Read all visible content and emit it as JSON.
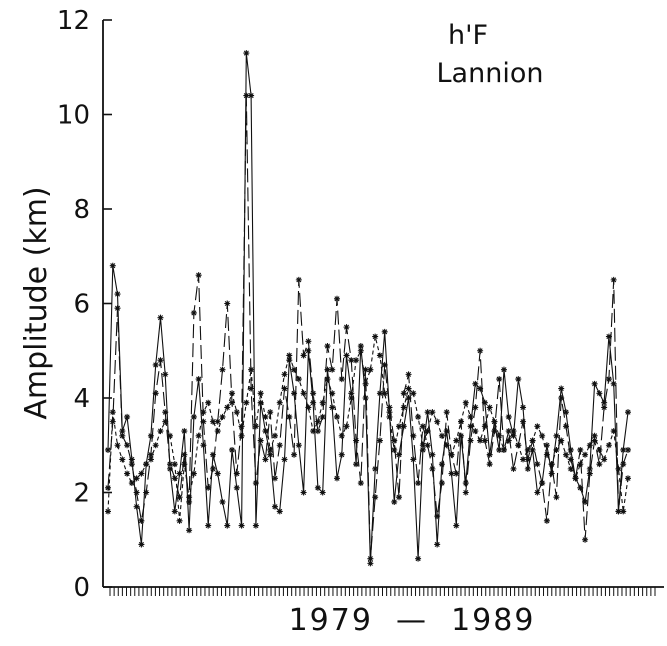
{
  "chart_data": {
    "type": "line",
    "title": "",
    "annotation": [
      "h'F",
      "Lannion"
    ],
    "xlabel": "1979  —  1989",
    "ylabel": "Amplitude  (km)",
    "ylim": [
      0,
      12
    ],
    "yticks": [
      0,
      2,
      4,
      6,
      8,
      10,
      12
    ],
    "ytick_labels": [
      "0",
      "2",
      "4",
      "6",
      "8",
      "10",
      "12"
    ],
    "xlim": [
      0,
      132
    ],
    "x_minor_ticks": 132,
    "grid": false,
    "marker": "asterisk",
    "color": "#111111",
    "series": [
      {
        "line_style": "solid",
        "values": [
          2.9,
          6.8,
          6.2,
          3.3,
          3.6,
          2.7,
          1.7,
          0.9,
          2.6,
          3.2,
          4.7,
          5.7,
          4.5,
          2.5,
          1.6,
          2.4,
          3.3,
          1.2,
          3.6,
          4.4,
          3.0,
          1.3,
          2.8,
          2.4,
          1.8,
          1.3,
          2.9,
          2.1,
          1.3,
          11.3,
          10.4,
          1.3,
          3.9,
          3.3,
          2.8,
          1.7,
          1.6,
          2.7,
          4.8,
          4.1,
          3.0,
          2.0,
          5.0,
          3.9,
          2.1,
          2.0,
          4.6,
          3.8,
          2.3,
          2.8,
          4.9,
          4.1,
          2.6,
          5.1,
          4.0,
          0.5,
          2.5,
          4.1,
          5.4,
          3.7,
          1.8,
          2.8,
          3.4,
          4.0,
          2.7,
          0.6,
          2.9,
          3.7,
          2.8,
          0.9,
          2.6,
          3.3,
          2.4,
          1.3,
          3.2,
          2.2,
          3.4,
          4.3,
          4.2,
          3.9,
          2.8,
          3.5,
          2.9,
          4.6,
          3.6,
          3.2,
          4.4,
          3.8,
          2.5,
          2.9,
          2.0,
          2.2,
          3.0,
          2.4,
          3.2,
          4.2,
          3.7,
          2.9,
          2.3,
          2.1,
          1.8,
          2.5,
          4.3,
          4.1,
          3.9,
          5.3,
          4.3,
          1.6,
          2.9,
          3.7
        ]
      },
      {
        "line_style": "long-dash",
        "values": [
          2.1,
          3.5,
          5.9,
          3.2,
          3.0,
          2.6,
          2.0,
          1.4,
          2.0,
          2.8,
          4.1,
          4.8,
          3.7,
          2.6,
          2.3,
          1.9,
          2.8,
          1.8,
          5.8,
          6.6,
          3.5,
          2.1,
          2.5,
          3.5,
          4.6,
          6.0,
          3.9,
          2.4,
          3.4,
          10.4,
          4.2,
          2.2,
          3.1,
          2.7,
          3.7,
          2.3,
          3.0,
          4.2,
          3.6,
          2.8,
          6.5,
          4.9,
          5.2,
          4.1,
          3.3,
          3.6,
          5.1,
          4.6,
          6.1,
          4.4,
          5.5,
          4.8,
          3.1,
          2.2,
          4.6,
          0.6,
          1.9,
          3.1,
          4.7,
          3.8,
          3.1,
          1.9,
          4.1,
          4.5,
          3.2,
          2.2,
          3.4,
          3.0,
          2.5,
          1.5,
          2.2,
          3.7,
          2.8,
          2.4,
          3.5,
          2.0,
          3.1,
          3.8,
          5.0,
          3.1,
          2.6,
          3.3,
          4.4,
          2.9,
          3.3,
          2.5,
          3.0,
          3.5,
          2.7,
          3.1,
          2.6,
          2.2,
          1.4,
          2.6,
          1.9,
          4.0,
          3.4,
          2.7,
          2.3,
          2.9,
          1.0,
          2.4,
          3.1,
          2.6,
          3.8,
          4.4,
          6.5,
          1.6,
          2.6,
          2.9
        ]
      },
      {
        "line_style": "short-dash",
        "values": [
          1.6,
          3.7,
          3.0,
          2.7,
          2.4,
          2.2,
          2.3,
          2.4,
          2.6,
          2.7,
          3.0,
          3.3,
          3.5,
          3.2,
          2.6,
          1.4,
          2.6,
          1.9,
          2.4,
          3.2,
          3.7,
          3.9,
          3.5,
          3.3,
          3.6,
          3.8,
          4.1,
          3.7,
          3.2,
          3.9,
          4.6,
          3.4,
          4.1,
          3.6,
          2.9,
          3.2,
          3.9,
          4.5,
          4.9,
          4.6,
          4.4,
          4.1,
          3.8,
          3.3,
          3.5,
          3.9,
          4.4,
          4.1,
          3.6,
          3.2,
          3.4,
          4.0,
          4.8,
          5.0,
          4.3,
          4.6,
          5.3,
          4.9,
          4.1,
          3.6,
          2.9,
          3.4,
          3.8,
          4.2,
          4.1,
          3.6,
          3.0,
          3.3,
          3.7,
          3.5,
          3.2,
          3.0,
          2.8,
          3.1,
          3.5,
          3.9,
          3.6,
          3.3,
          3.1,
          3.4,
          3.8,
          3.5,
          3.2,
          2.9,
          3.1,
          3.3,
          3.0,
          2.7,
          2.9,
          3.1,
          3.4,
          3.2,
          2.8,
          2.6,
          2.9,
          3.1,
          2.8,
          2.5,
          2.3,
          2.6,
          2.8,
          3.0,
          3.2,
          2.9,
          2.7,
          3.0,
          3.3,
          2.5,
          1.6,
          2.3
        ]
      }
    ]
  }
}
